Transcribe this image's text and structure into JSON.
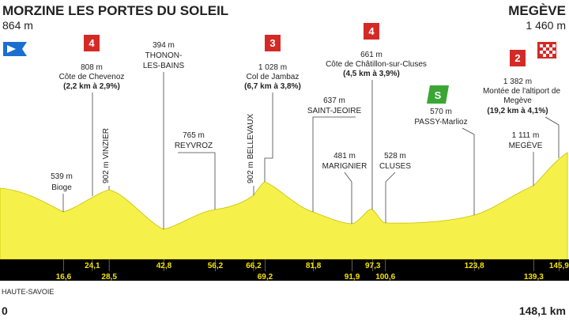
{
  "header": {
    "start_name": "MORZINE LES PORTES DU SOLEIL",
    "start_alt": "864 m",
    "finish_name": "MEGÈVE",
    "finish_alt": "1 460 m"
  },
  "points": [
    {
      "alt": "539 m",
      "name": "Bioge"
    },
    {
      "text": "902 m VINZIER"
    },
    {
      "badge": "4",
      "alt": "808 m",
      "name": "Côte de Chevenoz",
      "climb": "(2,2 km à 2,9%)"
    },
    {
      "alt": "394 m",
      "name": [
        "THONON-",
        "LES-BAINS"
      ]
    },
    {
      "alt": "765 m",
      "name": "REYVROZ"
    },
    {
      "text": "902 m BELLEVAUX"
    },
    {
      "badge": "3",
      "alt": "1 028 m",
      "name": "Col de Jambaz",
      "climb": "(6,7 km à 3,8%)"
    },
    {
      "alt": "637 m",
      "name": "SAINT-JEOIRE"
    },
    {
      "alt": "481 m",
      "name": "MARIGNIER"
    },
    {
      "badge": "4",
      "alt": "661 m",
      "name": "Côte de Châtillon-sur-Cluses",
      "climb": "(4,5 km à 3,9%)"
    },
    {
      "alt": "528 m",
      "name": "CLUSES"
    },
    {
      "badge": "S",
      "alt": "570 m",
      "name": "PASSY-Marlioz"
    },
    {
      "badge": "2",
      "alt": "1 382 m",
      "name": [
        "Montée de l'altiport de",
        "Megève"
      ],
      "climb": "(19,2 km à 4,1%)"
    },
    {
      "alt": "1 111 m",
      "name": "MEGÈVE"
    }
  ],
  "km_upper": [
    "24,1",
    "42,8",
    "56,2",
    "66,2",
    "81,8",
    "97,3",
    "123,8",
    "145,9"
  ],
  "km_lower": [
    "16,6",
    "28,5",
    "69,2",
    "91,9",
    "100,6",
    "139,3"
  ],
  "region": "HAUTE-SAVOIE",
  "start_km": "0",
  "end_km": "148,1 km"
}
